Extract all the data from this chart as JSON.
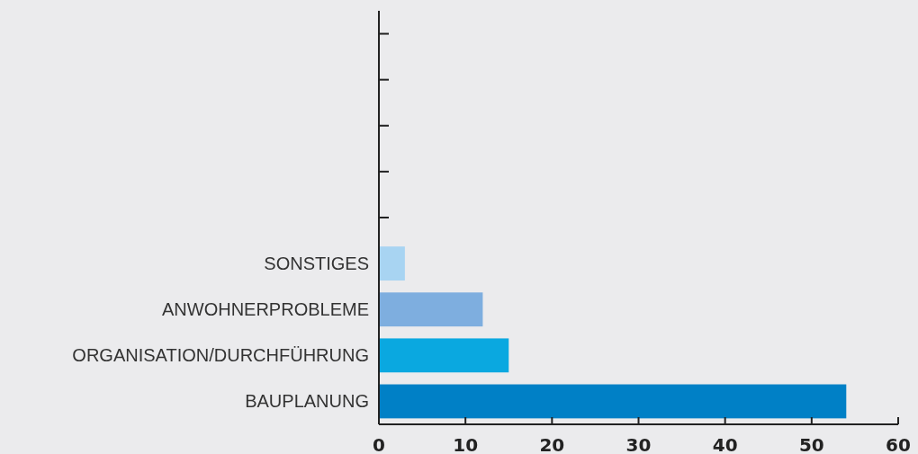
{
  "chart_data": {
    "type": "bar",
    "orientation": "horizontal",
    "categories": [
      null,
      null,
      null,
      null,
      null,
      "SONSTIGES",
      "ANWOHNERPROBLEME",
      "ORGANISATION/DURCHFÜHRUNG",
      "BAUPLANUNG"
    ],
    "values": [
      null,
      null,
      null,
      null,
      null,
      3,
      12,
      15,
      54
    ],
    "colors": [
      null,
      null,
      null,
      null,
      null,
      "#a8d4f2",
      "#7eaedf",
      "#0aa8e0",
      "#0080c6"
    ],
    "xlim": [
      0,
      60
    ],
    "xticks": [
      0,
      10,
      20,
      30,
      40,
      50,
      60
    ]
  }
}
